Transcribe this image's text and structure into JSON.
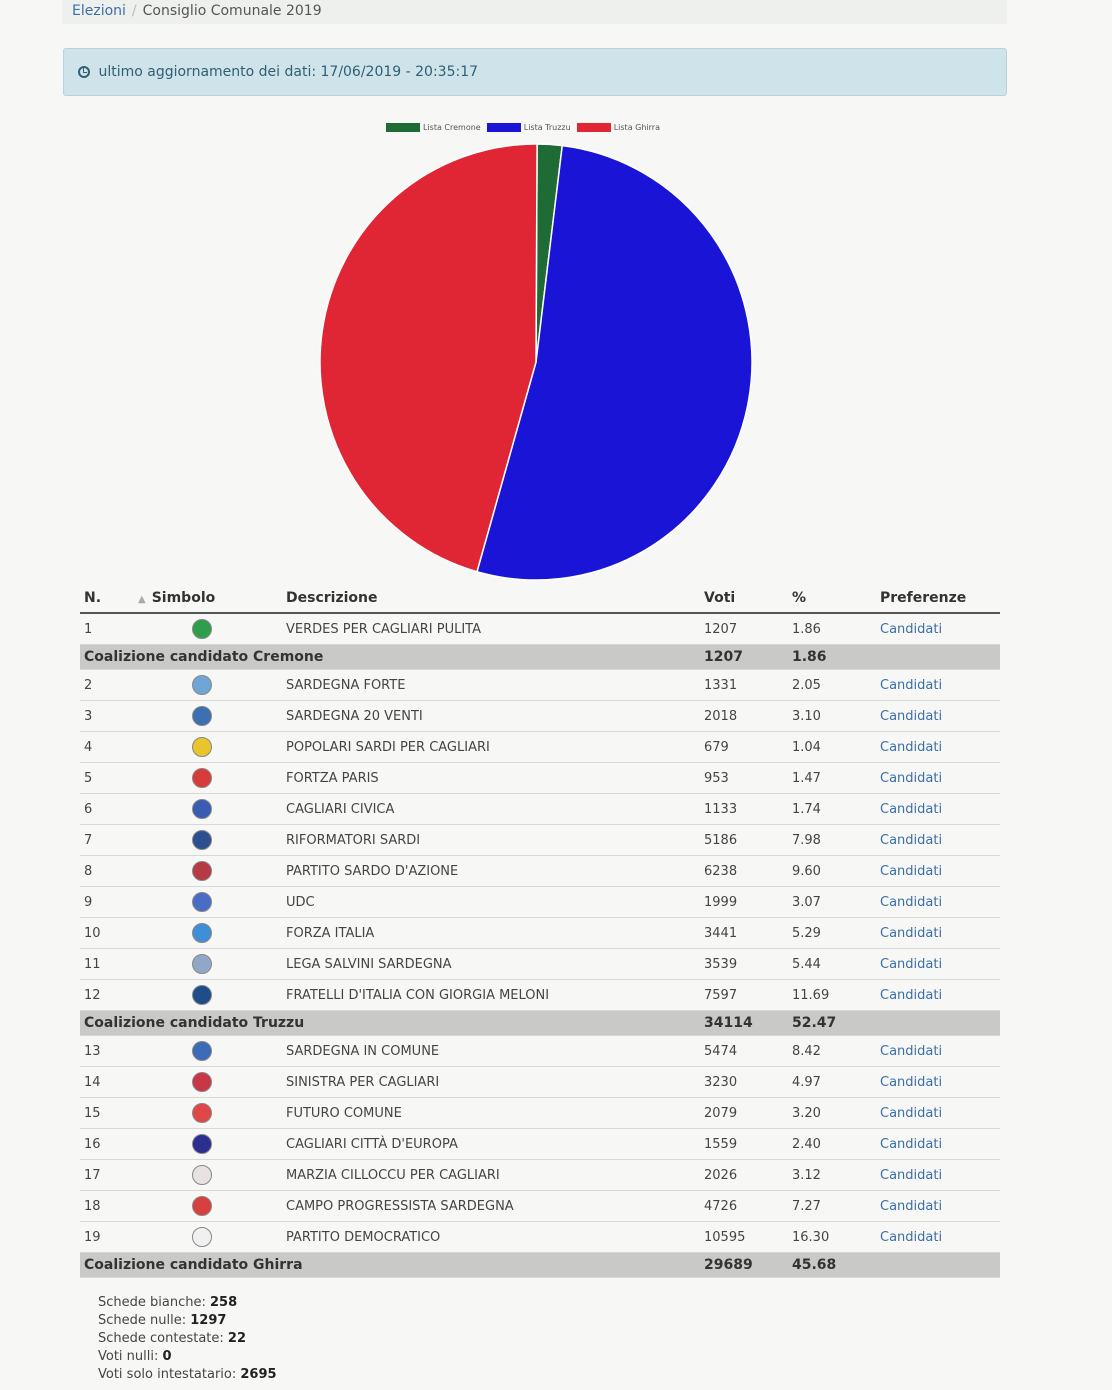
{
  "breadcrumb": {
    "home": "Elezioni",
    "current": "Consiglio Comunale 2019"
  },
  "update": {
    "text": "ultimo aggiornamento dei dati: 17/06/2019 - 20:35:17"
  },
  "legend": [
    {
      "label": "Lista Cremone",
      "color": "#1e6b35"
    },
    {
      "label": "Lista Truzzu",
      "color": "#1a14d6"
    },
    {
      "label": "Lista Ghirra",
      "color": "#e02535"
    }
  ],
  "chart_data": {
    "type": "pie",
    "labels": [
      "Lista Cremone",
      "Lista Truzzu",
      "Lista Ghirra"
    ],
    "values": [
      1.86,
      52.47,
      45.68
    ],
    "colors": [
      "#1e6b35",
      "#1a14d6",
      "#e02535"
    ]
  },
  "table": {
    "headers": {
      "n": "N.",
      "simbolo": "Simbolo",
      "descrizione": "Descrizione",
      "voti": "Voti",
      "perc": "%",
      "preferenze": "Preferenze"
    },
    "rows": [
      {
        "type": "list",
        "n": "1",
        "desc": "VERDES PER CAGLIARI PULITA",
        "voti": "1207",
        "perc": "1.86",
        "link": "Candidati",
        "icon": "verdes-logo-icon",
        "color": "#2e9e4a"
      },
      {
        "type": "coal",
        "label": "Coalizione candidato Cremone",
        "voti": "1207",
        "perc": "1.86"
      },
      {
        "type": "list",
        "n": "2",
        "desc": "SARDEGNA FORTE",
        "voti": "1331",
        "perc": "2.05",
        "link": "Candidati",
        "icon": "sardegna-forte-logo-icon",
        "color": "#6fa6d6"
      },
      {
        "type": "list",
        "n": "3",
        "desc": "SARDEGNA 20 VENTI",
        "voti": "2018",
        "perc": "3.10",
        "link": "Candidati",
        "icon": "sardegna-20-venti-logo-icon",
        "color": "#3d6fb3"
      },
      {
        "type": "list",
        "n": "4",
        "desc": "POPOLARI SARDI PER CAGLIARI",
        "voti": "679",
        "perc": "1.04",
        "link": "Candidati",
        "icon": "popolari-sardi-logo-icon",
        "color": "#e8c52a"
      },
      {
        "type": "list",
        "n": "5",
        "desc": "FORTZA PARIS",
        "voti": "953",
        "perc": "1.47",
        "link": "Candidati",
        "icon": "fortza-paris-logo-icon",
        "color": "#d93a3a"
      },
      {
        "type": "list",
        "n": "6",
        "desc": "CAGLIARI CIVICA",
        "voti": "1133",
        "perc": "1.74",
        "link": "Candidati",
        "icon": "cagliari-civica-logo-icon",
        "color": "#3a5db3"
      },
      {
        "type": "list",
        "n": "7",
        "desc": "RIFORMATORI SARDI",
        "voti": "5186",
        "perc": "7.98",
        "link": "Candidati",
        "icon": "riformatori-sardi-logo-icon",
        "color": "#2d4f8f"
      },
      {
        "type": "list",
        "n": "8",
        "desc": "PARTITO SARDO D'AZIONE",
        "voti": "6238",
        "perc": "9.60",
        "link": "Candidati",
        "icon": "partito-sardo-azione-logo-icon",
        "color": "#b53a45"
      },
      {
        "type": "list",
        "n": "9",
        "desc": "UDC",
        "voti": "1999",
        "perc": "3.07",
        "link": "Candidati",
        "icon": "udc-logo-icon",
        "color": "#4a6cc4"
      },
      {
        "type": "list",
        "n": "10",
        "desc": "FORZA ITALIA",
        "voti": "3441",
        "perc": "5.29",
        "link": "Candidati",
        "icon": "forza-italia-logo-icon",
        "color": "#3f8fd8"
      },
      {
        "type": "list",
        "n": "11",
        "desc": "LEGA SALVINI SARDEGNA",
        "voti": "3539",
        "perc": "5.44",
        "link": "Candidati",
        "icon": "lega-salvini-logo-icon",
        "color": "#8fa8c8"
      },
      {
        "type": "list",
        "n": "12",
        "desc": "FRATELLI D'ITALIA CON GIORGIA MELONI",
        "voti": "7597",
        "perc": "11.69",
        "link": "Candidati",
        "icon": "fratelli-italia-logo-icon",
        "color": "#1f4d8a"
      },
      {
        "type": "coal",
        "label": "Coalizione candidato Truzzu",
        "voti": "34114",
        "perc": "52.47"
      },
      {
        "type": "list",
        "n": "13",
        "desc": "SARDEGNA IN COMUNE",
        "voti": "5474",
        "perc": "8.42",
        "link": "Candidati",
        "icon": "sardegna-in-comune-logo-icon",
        "color": "#3c6bb8"
      },
      {
        "type": "list",
        "n": "14",
        "desc": "SINISTRA PER CAGLIARI",
        "voti": "3230",
        "perc": "4.97",
        "link": "Candidati",
        "icon": "sinistra-per-cagliari-logo-icon",
        "color": "#c93645"
      },
      {
        "type": "list",
        "n": "15",
        "desc": "FUTURO COMUNE",
        "voti": "2079",
        "perc": "3.20",
        "link": "Candidati",
        "icon": "futuro-comune-logo-icon",
        "color": "#e04848"
      },
      {
        "type": "list",
        "n": "16",
        "desc": "CAGLIARI CITTÀ D'EUROPA",
        "voti": "1559",
        "perc": "2.40",
        "link": "Candidati",
        "icon": "cagliari-citta-europa-logo-icon",
        "color": "#2b2f8f"
      },
      {
        "type": "list",
        "n": "17",
        "desc": "MARZIA CILLOCCU PER CAGLIARI",
        "voti": "2026",
        "perc": "3.12",
        "link": "Candidati",
        "icon": "marzia-cilloccu-logo-icon",
        "color": "#e8e2e2"
      },
      {
        "type": "list",
        "n": "18",
        "desc": "CAMPO PROGRESSISTA SARDEGNA",
        "voti": "4726",
        "perc": "7.27",
        "link": "Candidati",
        "icon": "campo-progressista-logo-icon",
        "color": "#d84040"
      },
      {
        "type": "list",
        "n": "19",
        "desc": "PARTITO DEMOCRATICO",
        "voti": "10595",
        "perc": "16.30",
        "link": "Candidati",
        "icon": "partito-democratico-logo-icon",
        "color": "#f0f0f0"
      },
      {
        "type": "coal",
        "label": "Coalizione candidato Ghirra",
        "voti": "29689",
        "perc": "45.68"
      }
    ]
  },
  "stats": [
    {
      "label": "Schede bianche:",
      "value": "258"
    },
    {
      "label": "Schede nulle:",
      "value": "1297"
    },
    {
      "label": "Schede contestate:",
      "value": "22"
    },
    {
      "label": "Voti nulli:",
      "value": "0"
    },
    {
      "label": "Voti solo intestatario:",
      "value": "2695"
    }
  ]
}
